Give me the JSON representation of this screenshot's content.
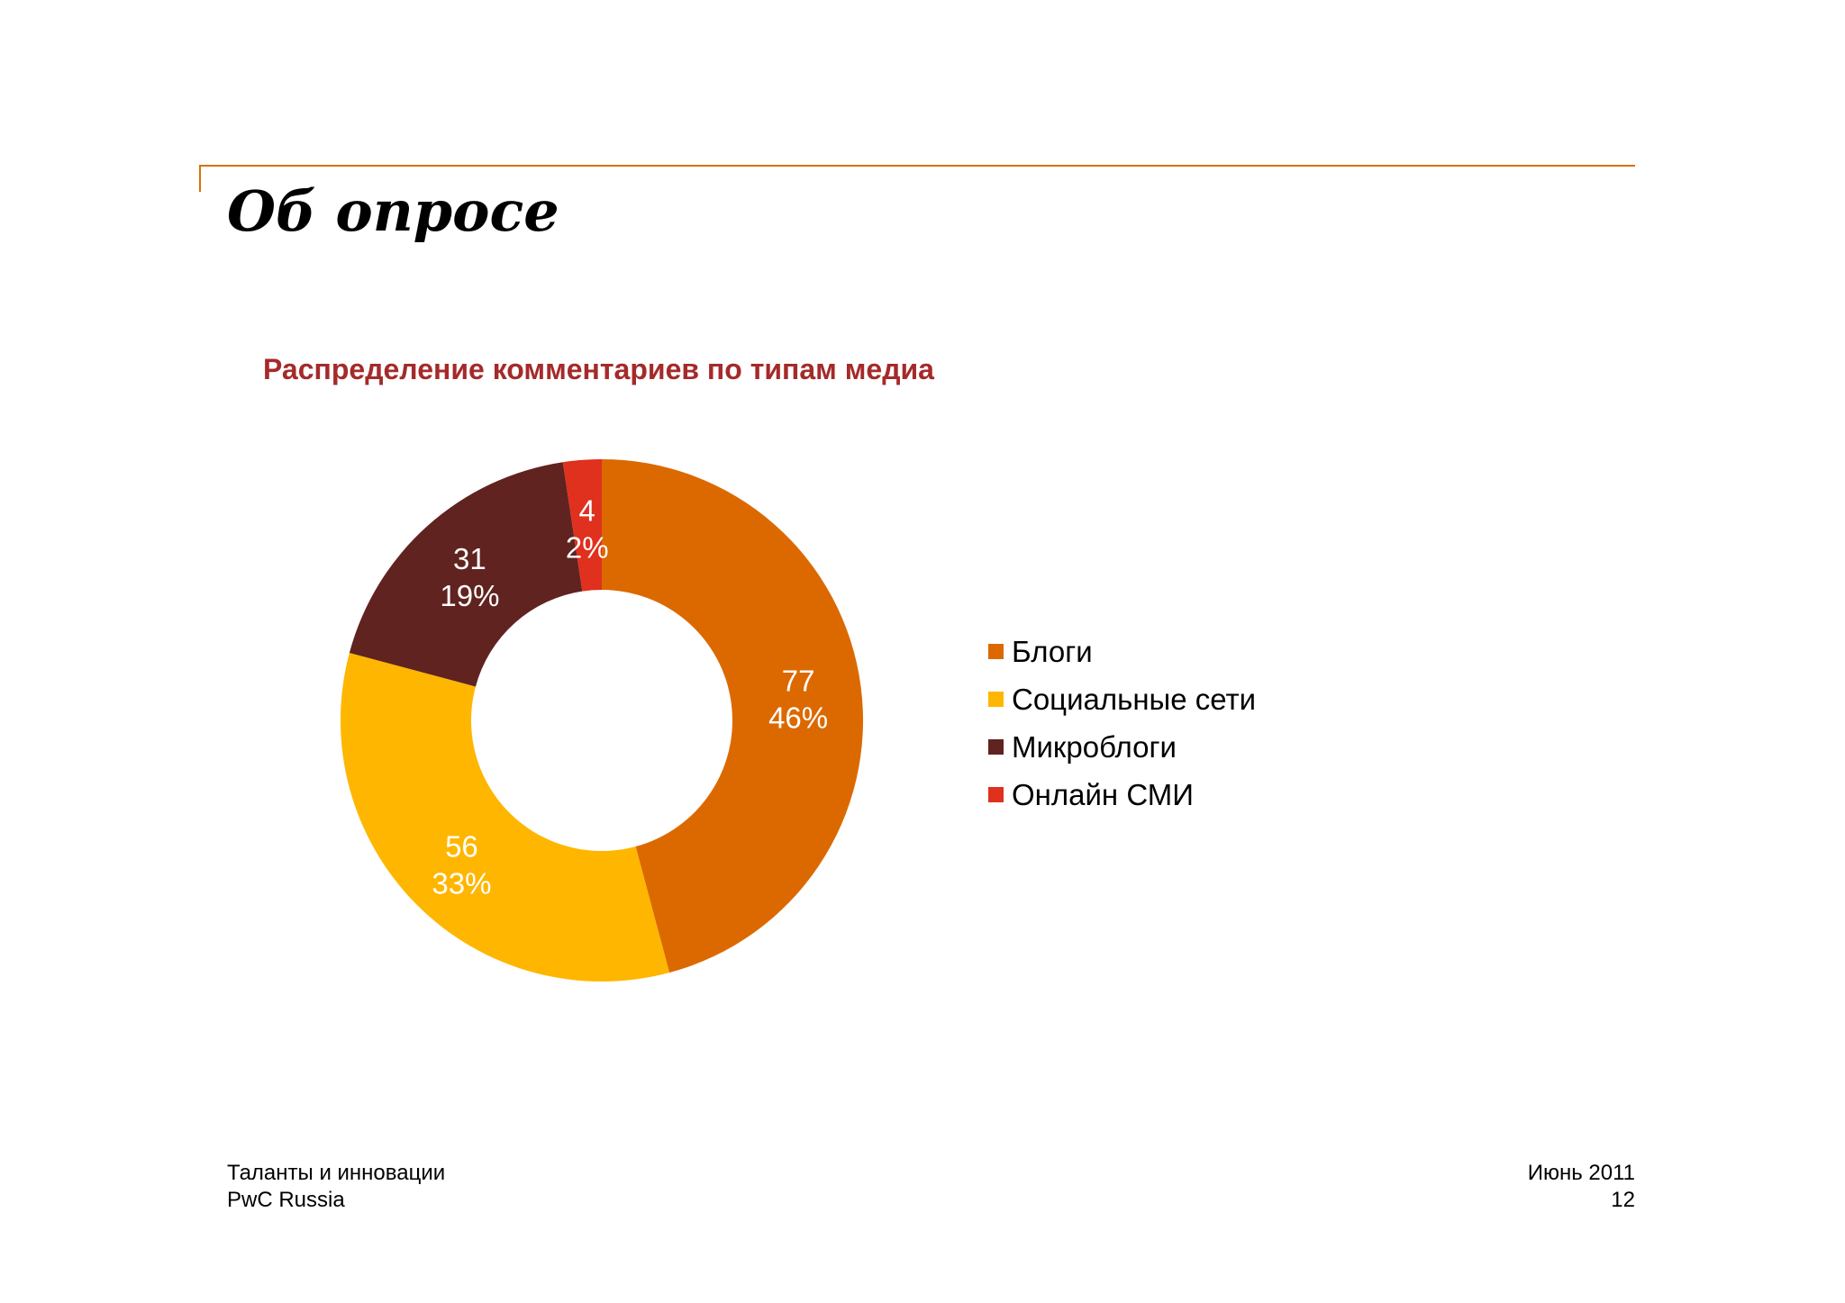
{
  "slide": {
    "title": "Об опросе",
    "accent": "#D96F0A"
  },
  "chart_data": {
    "type": "pie",
    "title": "Распределение комментариев по типам медиа",
    "title_color": "#A52A2A",
    "legend_position": "right",
    "series": [
      {
        "name": "Блоги",
        "value": 77,
        "percent": "46%",
        "color": "#DC6900"
      },
      {
        "name": "Социальные сети",
        "value": 56,
        "percent": "33%",
        "color": "#FFB600"
      },
      {
        "name": "Микроблоги",
        "value": 31,
        "percent": "19%",
        "color": "#602320"
      },
      {
        "name": "Онлайн СМИ",
        "value": 4,
        "percent": "2%",
        "color": "#E0301E"
      }
    ]
  },
  "footer": {
    "left_line1": "Таланты и инновации",
    "left_line2": "PwC Russia",
    "right_line1": "Июнь 2011",
    "right_line2": "12"
  }
}
